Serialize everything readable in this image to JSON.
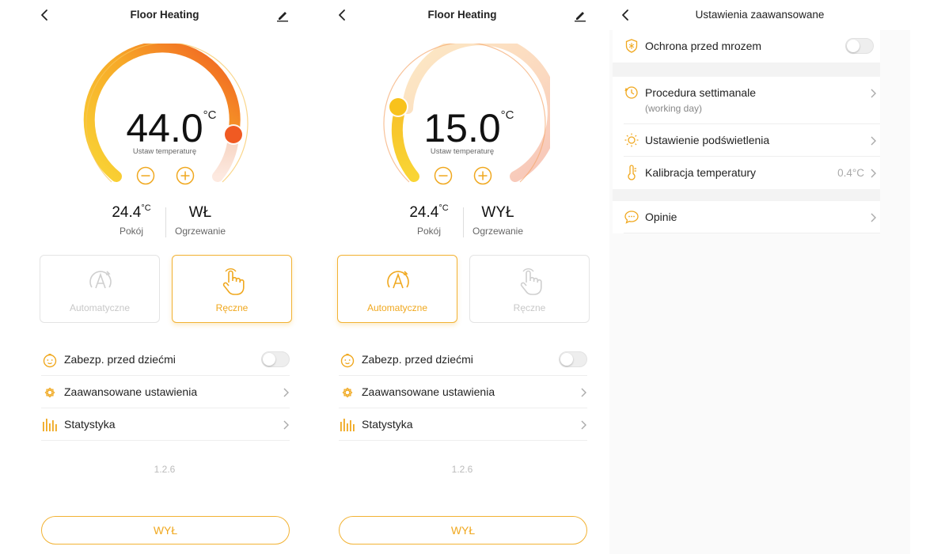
{
  "colors": {
    "accent": "#f0a81f",
    "accent_light": "#fde9c9",
    "arc_red": "#f05a22",
    "knob_yellow": "#f8c21c"
  },
  "screen1": {
    "title": "Floor Heating",
    "setpoint": "44.0",
    "setpoint_unit": "°C",
    "setpoint_label": "Ustaw temperaturę",
    "room_temp": "24.4",
    "room_temp_unit": "°C",
    "room_label": "Pokój",
    "heating_state": "WŁ",
    "heating_label": "Ogrzewanie",
    "modes": [
      {
        "label": "Automatyczne",
        "active": false
      },
      {
        "label": "Ręczne",
        "active": true
      }
    ],
    "rows": [
      {
        "label": "Zabezp. przed dziećmi",
        "icon": "child-lock-icon"
      },
      {
        "label": "Zaawansowane ustawienia",
        "icon": "gear-icon"
      },
      {
        "label": "Statystyka",
        "icon": "statistics-icon"
      }
    ],
    "version": "1.2.6",
    "power_label": "WYŁ"
  },
  "screen2": {
    "title": "Floor Heating",
    "setpoint": "15.0",
    "setpoint_unit": "°C",
    "setpoint_label": "Ustaw temperaturę",
    "room_temp": "24.4",
    "room_temp_unit": "°C",
    "room_label": "Pokój",
    "heating_state": "WYŁ",
    "heating_label": "Ogrzewanie",
    "modes": [
      {
        "label": "Automatyczne",
        "active": true
      },
      {
        "label": "Ręczne",
        "active": false
      }
    ],
    "rows": [
      {
        "label": "Zabezp. przed dziećmi",
        "icon": "child-lock-icon"
      },
      {
        "label": "Zaawansowane ustawienia",
        "icon": "gear-icon"
      },
      {
        "label": "Statystyka",
        "icon": "statistics-icon"
      }
    ],
    "version": "1.2.6",
    "power_label": "WYŁ"
  },
  "screen3": {
    "title": "Ustawienia zaawansowane",
    "frost": {
      "label": "Ochrona przed mrozem"
    },
    "weekly": {
      "label": "Procedura settimanale",
      "sub": "(working day)"
    },
    "backlight": {
      "label": "Ustawienie podświetlenia"
    },
    "calibration": {
      "label": "Kalibracja temperatury",
      "value": "0.4°C"
    },
    "feedback": {
      "label": "Opinie"
    }
  }
}
